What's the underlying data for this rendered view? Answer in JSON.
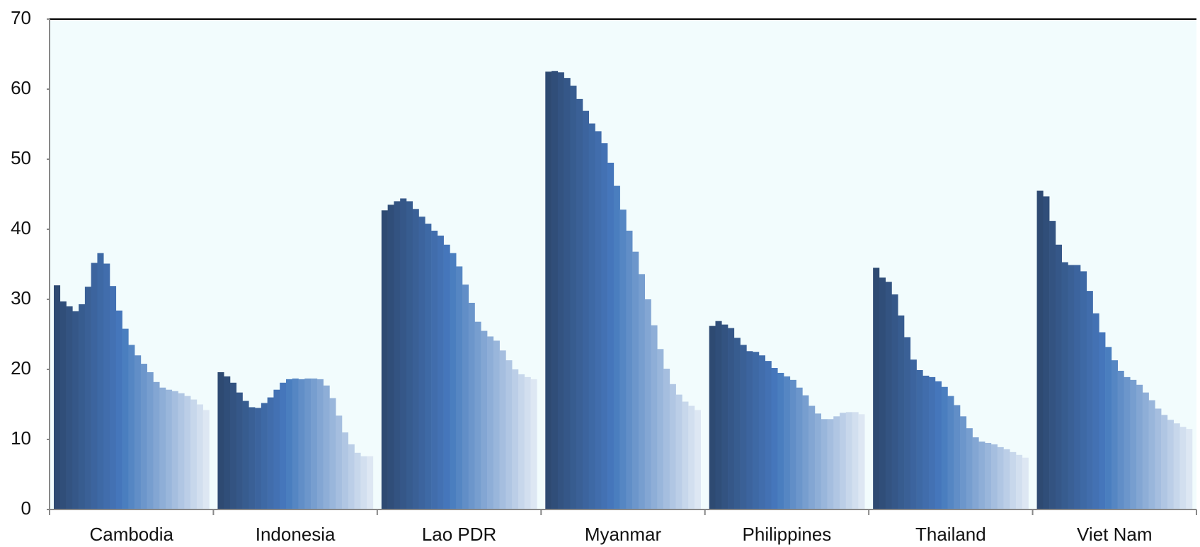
{
  "chart_data": {
    "type": "bar",
    "categories": [
      "Cambodia",
      "Indonesia",
      "Lao PDR",
      "Myanmar",
      "Philippines",
      "Thailand",
      "Viet Nam"
    ],
    "ylim": [
      0,
      70
    ],
    "yticks": [
      0,
      10,
      20,
      30,
      40,
      50,
      60,
      70
    ],
    "grid": false,
    "series": [
      {
        "color": "#2e4a72",
        "values": [
          32.0,
          19.6,
          42.7,
          62.5,
          26.2,
          34.5,
          45.5
        ]
      },
      {
        "color": "#304e79",
        "values": [
          29.7,
          19.0,
          43.5,
          62.6,
          26.9,
          33.1,
          44.7
        ]
      },
      {
        "color": "#335381",
        "values": [
          29.0,
          18.1,
          44.0,
          62.4,
          26.4,
          32.5,
          41.2
        ]
      },
      {
        "color": "#355788",
        "values": [
          28.3,
          16.7,
          44.4,
          61.6,
          25.9,
          30.7,
          37.8
        ]
      },
      {
        "color": "#375c8f",
        "values": [
          29.3,
          15.5,
          44.0,
          60.5,
          24.5,
          27.7,
          35.3
        ]
      },
      {
        "color": "#3a6096",
        "values": [
          31.8,
          14.6,
          42.9,
          58.6,
          23.5,
          24.6,
          34.9
        ]
      },
      {
        "color": "#3c649e",
        "values": [
          35.2,
          14.5,
          41.8,
          56.9,
          22.6,
          21.4,
          34.9
        ]
      },
      {
        "color": "#3e69a5",
        "values": [
          36.6,
          15.2,
          40.8,
          55.1,
          22.5,
          19.9,
          34.0
        ]
      },
      {
        "color": "#416dac",
        "values": [
          35.1,
          16.0,
          39.8,
          54.0,
          22.0,
          19.1,
          31.2
        ]
      },
      {
        "color": "#4371b3",
        "values": [
          31.9,
          17.1,
          39.1,
          52.3,
          21.2,
          18.9,
          28.0
        ]
      },
      {
        "color": "#4576bb",
        "values": [
          28.4,
          18.1,
          37.8,
          49.5,
          20.2,
          18.3,
          25.3
        ]
      },
      {
        "color": "#4a7ebf",
        "values": [
          25.8,
          18.6,
          36.6,
          46.2,
          19.5,
          17.5,
          23.2
        ]
      },
      {
        "color": "#5586c3",
        "values": [
          23.5,
          18.7,
          34.7,
          42.8,
          19.0,
          16.2,
          21.3
        ]
      },
      {
        "color": "#618ec7",
        "values": [
          22.0,
          18.6,
          32.1,
          39.8,
          18.5,
          14.9,
          19.8
        ]
      },
      {
        "color": "#6c96cb",
        "values": [
          20.8,
          18.7,
          29.5,
          36.8,
          17.4,
          13.3,
          18.9
        ]
      },
      {
        "color": "#779ecf",
        "values": [
          19.6,
          18.7,
          26.8,
          33.6,
          16.3,
          11.6,
          18.5
        ]
      },
      {
        "color": "#83a6d3",
        "values": [
          18.2,
          18.6,
          25.5,
          30.0,
          14.8,
          10.3,
          17.8
        ]
      },
      {
        "color": "#8eaed7",
        "values": [
          17.4,
          17.7,
          24.7,
          26.3,
          13.7,
          9.7,
          16.7
        ]
      },
      {
        "color": "#99b6db",
        "values": [
          17.1,
          15.9,
          24.1,
          22.9,
          12.9,
          9.5,
          15.6
        ]
      },
      {
        "color": "#a5bedf",
        "values": [
          16.9,
          13.4,
          22.7,
          20.1,
          12.9,
          9.3,
          14.4
        ]
      },
      {
        "color": "#b0c6e3",
        "values": [
          16.6,
          11.0,
          21.3,
          17.9,
          13.3,
          8.9,
          13.5
        ]
      },
      {
        "color": "#bbcee7",
        "values": [
          16.2,
          9.3,
          20.0,
          16.4,
          13.8,
          8.6,
          12.8
        ]
      },
      {
        "color": "#c7d7eb",
        "values": [
          15.7,
          8.1,
          19.3,
          15.4,
          13.9,
          8.2,
          12.3
        ]
      },
      {
        "color": "#d2dfef",
        "values": [
          15.0,
          7.6,
          18.9,
          14.8,
          13.9,
          7.8,
          11.8
        ]
      },
      {
        "color": "#dde7f3",
        "values": [
          14.2,
          7.6,
          18.6,
          14.2,
          13.6,
          7.4,
          11.5
        ]
      }
    ]
  }
}
